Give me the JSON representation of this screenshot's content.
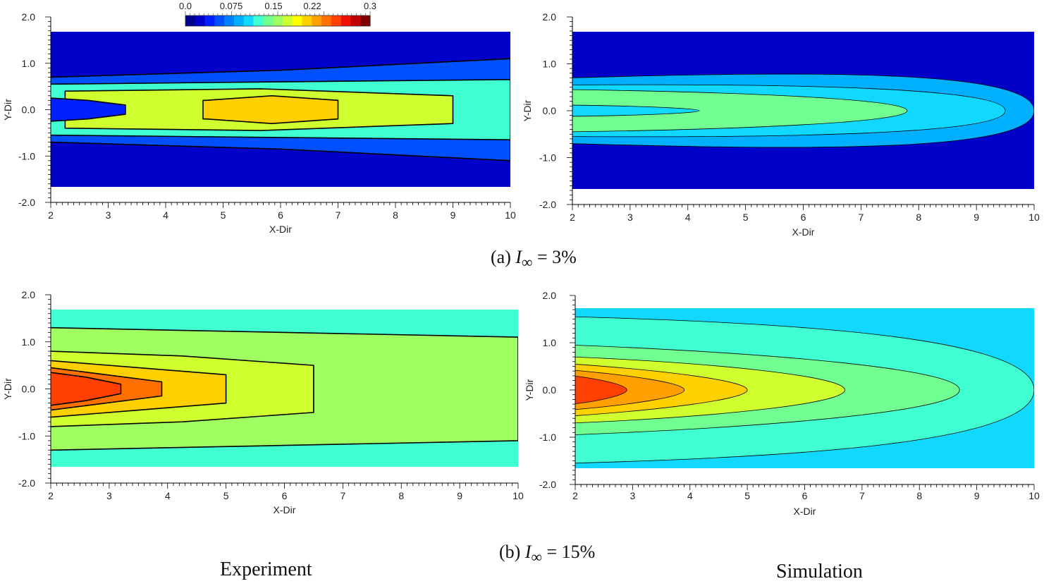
{
  "figure": {
    "caption_a_prefix": "(a) ",
    "caption_a_symbol": "I",
    "caption_a_sub": "∞",
    "caption_a_value": " = 3%",
    "caption_b_prefix": "(b) ",
    "caption_b_symbol": "I",
    "caption_b_sub": "∞",
    "caption_b_value": " = 15%",
    "label_left": "Experiment",
    "label_right": "Simulation"
  },
  "colorbar": {
    "labels": [
      "0.0",
      "0.075",
      "0.15",
      "0.22",
      "0.3"
    ],
    "min": 0.0,
    "max": 0.3,
    "levels": 19,
    "colors": [
      "#00008f",
      "#0000c8",
      "#0020ff",
      "#0050ff",
      "#0080ff",
      "#00b0ff",
      "#10d8ff",
      "#40ffd0",
      "#70ff90",
      "#a0ff60",
      "#d0ff30",
      "#ffff00",
      "#ffd000",
      "#ffa000",
      "#ff7000",
      "#ff4000",
      "#f01000",
      "#c00000",
      "#800000"
    ]
  },
  "chart_data": [
    {
      "type": "heatmap",
      "panel": "Experiment (a)",
      "xlabel": "X-Dir",
      "ylabel": "Y-Dir",
      "xlim": [
        2,
        10
      ],
      "ylim": [
        -2,
        2
      ],
      "xticks": [
        "2",
        "3",
        "4",
        "5",
        "6",
        "7",
        "8",
        "9",
        "10"
      ],
      "yticks": [
        "2.0",
        "1.0",
        "0.0",
        "-1.0",
        "-2.0"
      ],
      "background_value": 0.02,
      "regions": [
        {
          "value": 0.05,
          "x0": 2.0,
          "x1": 10.0,
          "y_half": [
            0.7,
            0.85,
            1.1
          ]
        },
        {
          "value": 0.12,
          "x0": 2.0,
          "x1": 10.0,
          "y_half": [
            0.55,
            0.6,
            0.65
          ]
        },
        {
          "value": 0.16,
          "x0": 2.3,
          "x1": 9.0,
          "y_half": [
            0.4,
            0.45,
            0.3
          ]
        },
        {
          "value": 0.19,
          "x0": 4.7,
          "x1": 7.0,
          "y_half": [
            0.2,
            0.3,
            0.2
          ]
        },
        {
          "value": 0.04,
          "x0": 2.0,
          "x1": 3.3,
          "y_half": [
            0.25,
            0.2,
            0.1
          ]
        }
      ]
    },
    {
      "type": "heatmap",
      "panel": "Simulation (a)",
      "xlabel": "X-Dir",
      "ylabel": "Y-Dir",
      "xlim": [
        2,
        10
      ],
      "ylim": [
        -2,
        2
      ],
      "xticks": [
        "2",
        "3",
        "4",
        "5",
        "6",
        "7",
        "8",
        "9",
        "10"
      ],
      "yticks": [
        "2.0",
        "1.0",
        "0.0",
        "-1.0",
        "-2.0"
      ],
      "background_value": 0.02,
      "regions": [
        {
          "value": 0.09,
          "x0": 2.0,
          "x1": 10.0,
          "y_half": [
            0.7,
            0.8,
            0.9
          ]
        },
        {
          "value": 0.11,
          "x0": 2.0,
          "x1": 9.5,
          "y_half": [
            0.55,
            0.55,
            0.5
          ]
        },
        {
          "value": 0.14,
          "x0": 2.0,
          "x1": 7.8,
          "y_half": [
            0.45,
            0.38,
            0.25
          ]
        },
        {
          "value": 0.11,
          "x0": 2.0,
          "x1": 4.2,
          "y_half": [
            0.12,
            0.1,
            0.05
          ]
        }
      ]
    },
    {
      "type": "heatmap",
      "panel": "Experiment (b)",
      "xlabel": "X-Dir",
      "ylabel": "Y-Dir",
      "xlim": [
        2,
        10
      ],
      "ylim": [
        -2,
        2
      ],
      "xticks": [
        "2",
        "3",
        "4",
        "5",
        "6",
        "7",
        "8",
        "9",
        "10"
      ],
      "yticks": [
        "2.0",
        "1.0",
        "0.0",
        "-1.0",
        "-2.0"
      ],
      "background_value": 0.12,
      "regions": [
        {
          "value": 0.15,
          "x0": 2.0,
          "x1": 10.0,
          "y_half": [
            1.3,
            1.2,
            1.1
          ]
        },
        {
          "value": 0.17,
          "x0": 2.0,
          "x1": 6.5,
          "y_half": [
            0.8,
            0.7,
            0.5
          ]
        },
        {
          "value": 0.2,
          "x0": 2.0,
          "x1": 5.0,
          "y_half": [
            0.6,
            0.45,
            0.3
          ]
        },
        {
          "value": 0.23,
          "x0": 2.0,
          "x1": 3.9,
          "y_half": [
            0.45,
            0.3,
            0.15
          ]
        },
        {
          "value": 0.25,
          "x0": 2.0,
          "x1": 3.2,
          "y_half": [
            0.35,
            0.25,
            0.1
          ]
        }
      ]
    },
    {
      "type": "heatmap",
      "panel": "Simulation (b)",
      "xlabel": "X-Dir",
      "ylabel": "Y-Dir",
      "xlim": [
        2,
        10
      ],
      "ylim": [
        -2,
        2
      ],
      "xticks": [
        "2",
        "3",
        "4",
        "5",
        "6",
        "7",
        "8",
        "9",
        "10"
      ],
      "yticks": [
        "2.0",
        "1.0",
        "0.0",
        "-1.0",
        "-2.0"
      ],
      "background_value": 0.1,
      "regions": [
        {
          "value": 0.12,
          "x0": 2.0,
          "x1": 10.0,
          "y_half": [
            1.55,
            1.35,
            1.1
          ]
        },
        {
          "value": 0.14,
          "x0": 2.0,
          "x1": 8.7,
          "y_half": [
            0.95,
            0.75,
            0.45
          ]
        },
        {
          "value": 0.16,
          "x0": 2.0,
          "x1": 6.7,
          "y_half": [
            0.7,
            0.55,
            0.3
          ]
        },
        {
          "value": 0.19,
          "x0": 2.0,
          "x1": 5.0,
          "y_half": [
            0.55,
            0.4,
            0.2
          ]
        },
        {
          "value": 0.22,
          "x0": 2.0,
          "x1": 3.9,
          "y_half": [
            0.42,
            0.3,
            0.15
          ]
        },
        {
          "value": 0.25,
          "x0": 2.0,
          "x1": 2.9,
          "y_half": [
            0.3,
            0.22,
            0.1
          ]
        }
      ]
    }
  ]
}
